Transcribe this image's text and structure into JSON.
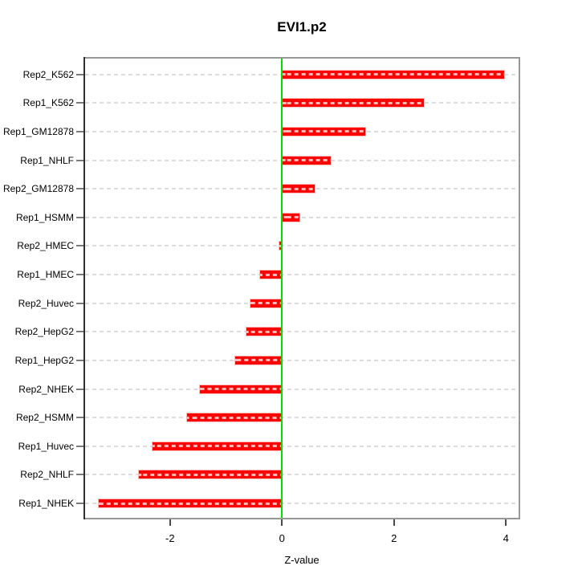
{
  "title": "EVI1.p2",
  "axis": {
    "xlabel": "Z-value",
    "x_tick_labels": [
      "-2",
      "0",
      "2",
      "4"
    ],
    "x_tick_values": [
      -2,
      0,
      2,
      4
    ]
  },
  "colors": {
    "bar": "#ff0000",
    "zero_line": "#00dd00",
    "gridline": "#dcdcdc",
    "box": "#979797",
    "y_axis": "#2f2f2f"
  },
  "chart_data": {
    "type": "bar",
    "orientation": "horizontal",
    "title": "EVI1.p2",
    "xlabel": "Z-value",
    "ylabel": "",
    "xlim": [
      -3.55,
      4.25
    ],
    "grid": true,
    "zero_line": true,
    "categories": [
      "Rep2_K562",
      "Rep1_K562",
      "Rep1_GM12878",
      "Rep1_NHLF",
      "Rep2_GM12878",
      "Rep1_HSMM",
      "Rep2_HMEC",
      "Rep1_HMEC",
      "Rep2_Huvec",
      "Rep2_HepG2",
      "Rep1_HepG2",
      "Rep2_NHEK",
      "Rep2_HSMM",
      "Rep1_Huvec",
      "Rep2_NHLF",
      "Rep1_NHEK"
    ],
    "values": [
      3.97,
      2.54,
      1.49,
      0.87,
      0.59,
      0.31,
      -0.05,
      -0.39,
      -0.56,
      -0.63,
      -0.84,
      -1.46,
      -1.69,
      -2.31,
      -2.56,
      -3.27
    ]
  }
}
